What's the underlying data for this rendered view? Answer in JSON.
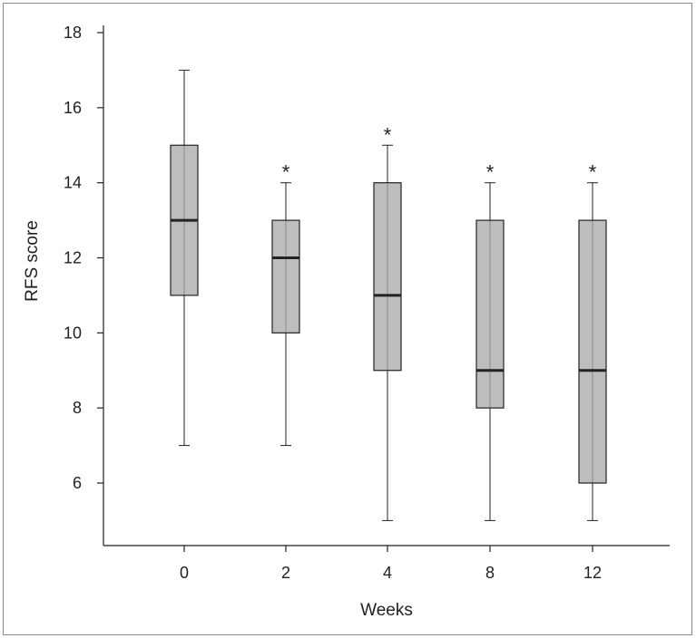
{
  "chart_data": {
    "type": "box",
    "xlabel": "Weeks",
    "ylabel": "RFS score",
    "ylim": [
      4.5,
      18.2
    ],
    "yticks": [
      6,
      8,
      10,
      12,
      14,
      16,
      18
    ],
    "grid": false,
    "legend": "none",
    "colors": {
      "box_fill": "#bdbdbd",
      "stroke": "#222222",
      "frame": "#888888"
    },
    "categories": [
      "0",
      "2",
      "4",
      "8",
      "12"
    ],
    "boxes": [
      {
        "category": "0",
        "min": 7,
        "q1": 11,
        "median": 13,
        "q3": 15,
        "max": 17,
        "annotation": ""
      },
      {
        "category": "2",
        "min": 7,
        "q1": 10,
        "median": 12,
        "q3": 13,
        "max": 14,
        "annotation": "*"
      },
      {
        "category": "4",
        "min": 5,
        "q1": 9,
        "median": 11,
        "q3": 14,
        "max": 15,
        "annotation": "*"
      },
      {
        "category": "8",
        "min": 5,
        "q1": 8,
        "median": 9,
        "q3": 13,
        "max": 14,
        "annotation": "*"
      },
      {
        "category": "12",
        "min": 5,
        "q1": 6,
        "median": 9,
        "q3": 13,
        "max": 14,
        "annotation": "*"
      }
    ]
  }
}
